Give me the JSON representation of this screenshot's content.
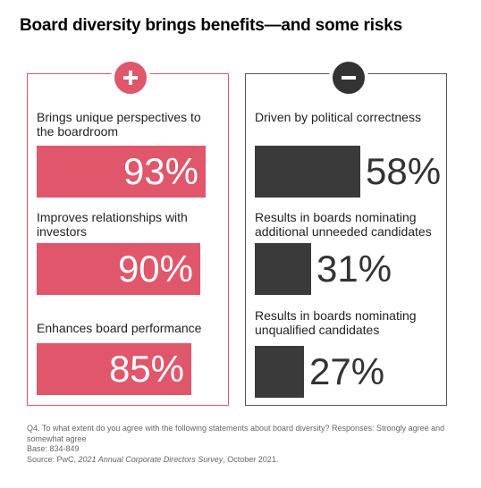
{
  "title": "Board diversity brings benefits—and some risks",
  "colors": {
    "positive": "#e0566b",
    "negative": "#3a3a3a"
  },
  "chart_data": [
    {
      "type": "bar",
      "panel": "plus",
      "categories": [
        "Brings unique perspectives to the boardroom",
        "Improves relationships with investors",
        "Enhances board performance"
      ],
      "labels": [
        "93%",
        "90%",
        "85%"
      ],
      "values": [
        93,
        90,
        85
      ]
    },
    {
      "type": "bar",
      "panel": "minus",
      "categories": [
        "Driven by political correctness",
        "Results in boards nominating additional unneeded candidates",
        "Results in boards nominating unqualified candidates"
      ],
      "labels": [
        "58%",
        "31%",
        "27%"
      ],
      "values": [
        58,
        31,
        27
      ]
    }
  ],
  "footnote": {
    "question": "Q4. To what extent do you agree with the following statements about board diversity? Responses: Strongly agree and somewhat agree",
    "base": "Base: 834-849",
    "source_prefix": "Source: PwC, ",
    "source_title": "2021 Annual Corporate Directors Survey",
    "source_suffix": ", October 2021."
  }
}
